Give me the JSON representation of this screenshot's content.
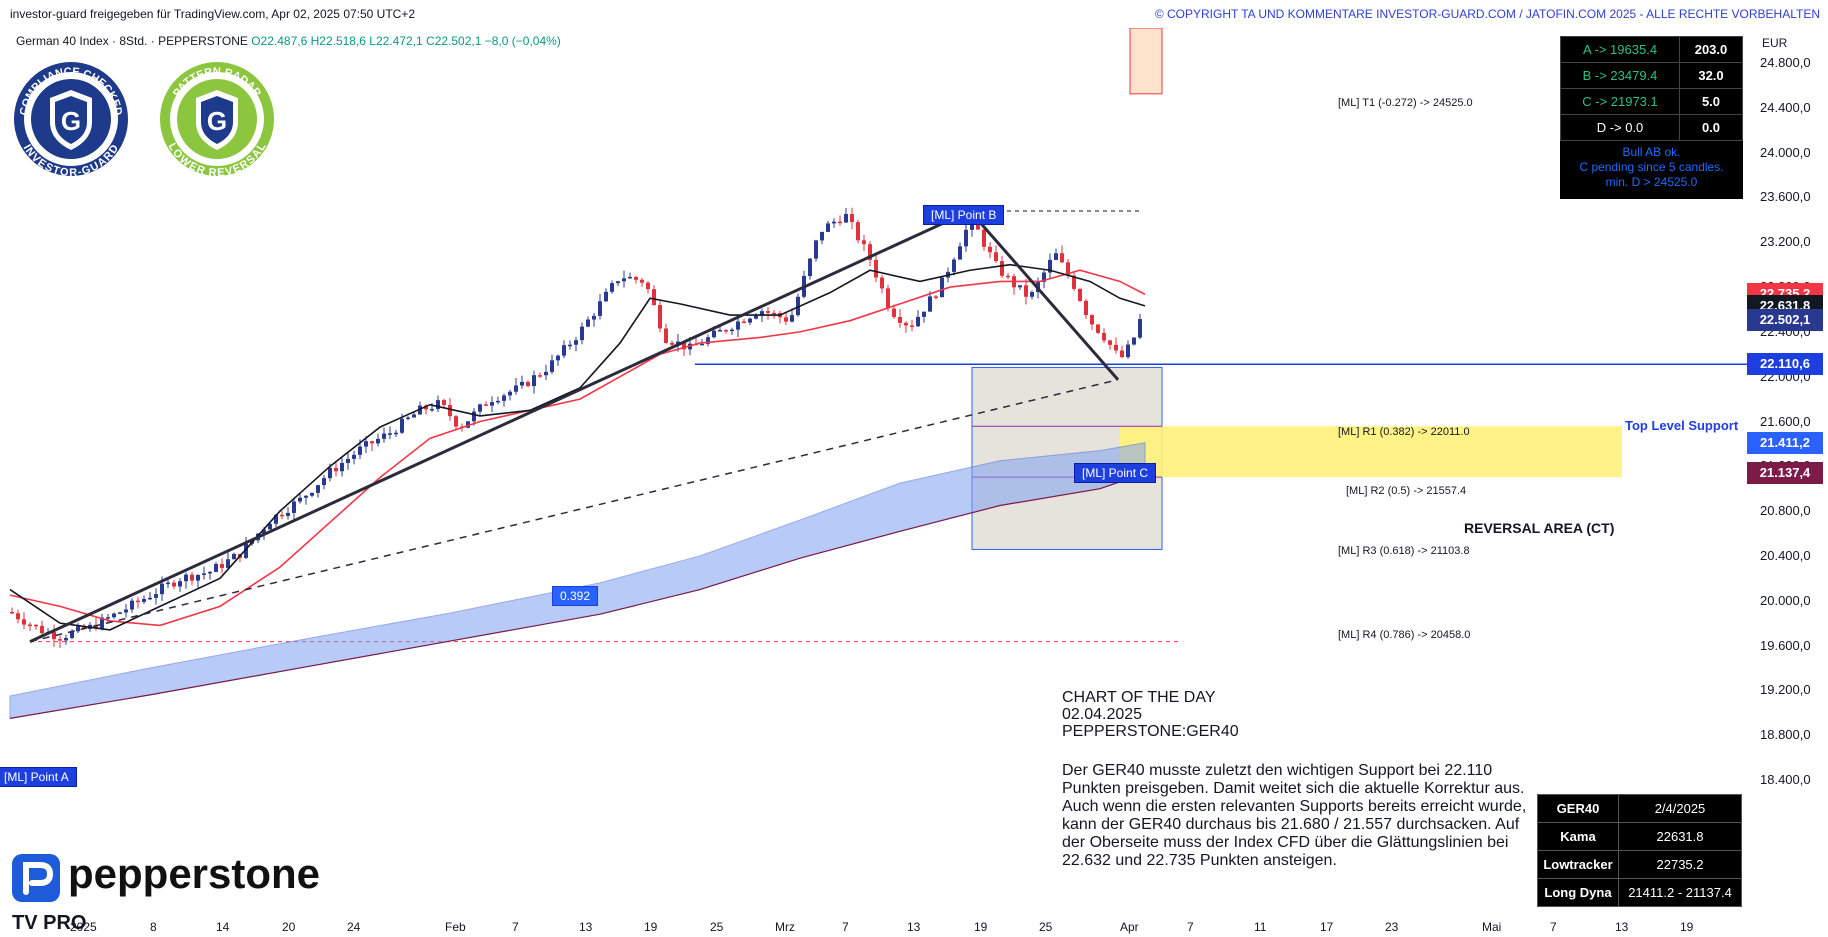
{
  "header": {
    "left": "investor-guard freigegeben für TradingView.com, Apr 02, 2025 07:50 UTC+2",
    "right": "© COPYRIGHT TA UND KOMMENTARE INVESTOR-GUARD.COM / JATOFIN.COM 2025 - ALLE RECHTE VORBEHALTEN"
  },
  "legend": {
    "symbol": "German 40 Index · 8Std. · PEPPERSTONE",
    "ohlc": "O22.487,6  H22.518,6  L22.472,1  C22.502,1  −8,0 (−0,04%)"
  },
  "badges": [
    {
      "top": "COMPLIANCE CHECKED",
      "bottom": "INVESTOR-GUARD",
      "letter": "G",
      "ring_color": "#1e3a8a",
      "fill_color": "#1e3a8a"
    },
    {
      "top": "PATTERN RADAR",
      "bottom": "LOWER REVERSAL",
      "letter": "G",
      "ring_color": "#8cc63f",
      "fill_color": "#1e3a8a"
    }
  ],
  "abcd_panel": {
    "rows": [
      {
        "label": "A -> 19635.4",
        "value": "203.0"
      },
      {
        "label": "B -> 23479.4",
        "value": "32.0"
      },
      {
        "label": "C -> 21973.1",
        "value": "5.0"
      },
      {
        "label": "D -> 0.0",
        "value": "0.0"
      }
    ],
    "note": [
      "Bull AB ok.",
      "C pending since 5 candles.",
      "min. D > 24525.0"
    ]
  },
  "price_axis": {
    "currency": "EUR",
    "ticks": [
      "24.800,0",
      "24.400,0",
      "24.000,0",
      "23.600,0",
      "23.200,0",
      "22.800,0",
      "22.400,0",
      "22.000,0",
      "21.600,0",
      "21.200,0",
      "20.800,0",
      "20.400,0",
      "20.000,0",
      "19.600,0",
      "19.200,0",
      "18.800,0",
      "18.400,0"
    ],
    "tags": [
      {
        "text": "22.735,2",
        "color": "#f23645",
        "price": 22735.2
      },
      {
        "text": "22.631,8",
        "color": "#131722",
        "price": 22631.8
      },
      {
        "text": "22.502,1",
        "color": "#2a3990",
        "price": 22502.1
      },
      {
        "text": "22.110,6",
        "color": "#1e3fe0",
        "price": 22110.6
      },
      {
        "text": "21.411,2",
        "color": "#2962ff",
        "price": 21411.2
      },
      {
        "text": "21.137,4",
        "color": "#7d1a46",
        "price": 21137.4
      }
    ]
  },
  "time_axis": {
    "labels": [
      "2025",
      "8",
      "14",
      "20",
      "24",
      "Feb",
      "7",
      "13",
      "19",
      "25",
      "Mrz",
      "7",
      "13",
      "19",
      "25",
      "Apr",
      "7",
      "11",
      "17",
      "23",
      "Mai",
      "7",
      "13",
      "19"
    ]
  },
  "annotations": {
    "t1": "[ML] T1 (-0.272) -> 24525.0",
    "r1": "[ML] R1 (0.382) -> 22011.0",
    "r2": "[ML] R2 (0.5) -> 21557.4",
    "r3": "[ML] R3 (0.618) -> 21103.8",
    "r4": "[ML] R4 (0.786) -> 20458.0",
    "top_support": "Top Level Support",
    "reversal": "REVERSAL AREA (CT)",
    "point_a": "[ML] Point  A",
    "point_b": "[ML] Point  B",
    "point_c": "[ML] Point  C",
    "ratio": "0.392"
  },
  "chart_of_the_day": {
    "line1": "CHART OF THE DAY",
    "line2": "02.04.2025",
    "line3": "PEPPERSTONE:GER40"
  },
  "description": "Der GER40 musste zuletzt den wichtigen Support bei 22.110 Punkten preisgeben. Damit weitet sich die aktuelle Korrektur aus. Auch wenn die ersten relevanten Supports bereits erreicht wurde, kann der GER40 durchaus bis 21.680 / 21.557 durchsacken. Auf der Oberseite muss der Index CFD über die Glättungslinien bei 22.632 und 22.735 Punkten ansteigen.",
  "info_table": [
    {
      "k": "GER40",
      "v": "2/4/2025"
    },
    {
      "k": "Kama",
      "v": "22631.8"
    },
    {
      "k": "Lowtracker",
      "v": "22735.2"
    },
    {
      "k": "Long Dyna",
      "v": "21411.2 - 21137.4"
    }
  ],
  "brand": {
    "name": "pepperstone",
    "platform": "TV PRO"
  },
  "chart_data": {
    "type": "line",
    "ylim": [
      18400,
      25000
    ],
    "y_unit": "EUR",
    "abcd_points": [
      {
        "name": "A",
        "price": 19635.4
      },
      {
        "name": "B",
        "price": 23479.4
      },
      {
        "name": "C",
        "price": 21973.1
      }
    ],
    "levels": [
      {
        "name": "T1",
        "ratio": -0.272,
        "price": 24525.0
      },
      {
        "name": "R1",
        "ratio": 0.382,
        "price": 22011.0
      },
      {
        "name": "R2",
        "ratio": 0.5,
        "price": 21557.4
      },
      {
        "name": "R3",
        "ratio": 0.618,
        "price": 21103.8
      },
      {
        "name": "R4",
        "ratio": 0.786,
        "price": 20458.0
      },
      {
        "name": "Top Level Support",
        "price": 22110.6
      }
    ],
    "reversal_area": [
      21103.8,
      21557.4
    ],
    "series": [
      {
        "name": "Kama",
        "last": 22631.8
      },
      {
        "name": "Lowtracker",
        "last": 22735.2
      },
      {
        "name": "Long Dyna",
        "upper": 21411.2,
        "lower": 21137.4
      }
    ],
    "close": 22502.1,
    "colors": {
      "up": "#2a3990",
      "down": "#e0323c",
      "kama": "#131722",
      "lowtracker": "#f23645",
      "dyna": "#7fa0f0",
      "support": "#1e3fe0",
      "reversal": "#fff176"
    }
  }
}
